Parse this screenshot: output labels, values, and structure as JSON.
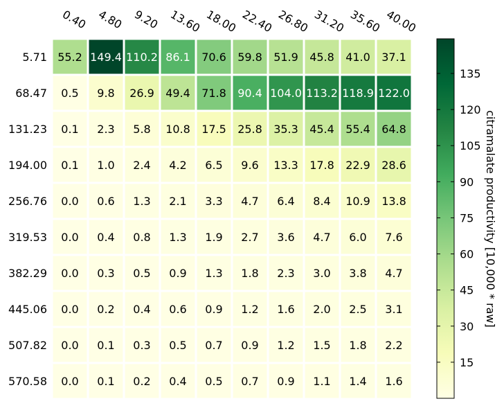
{
  "chart_data": {
    "type": "heatmap",
    "x_ticks": [
      "0.40",
      "4.80",
      "9.20",
      "13.60",
      "18.00",
      "22.40",
      "26.80",
      "31.20",
      "35.60",
      "40.00"
    ],
    "y_ticks": [
      "5.71",
      "68.47",
      "131.23",
      "194.00",
      "256.76",
      "319.53",
      "382.29",
      "445.06",
      "507.82",
      "570.58"
    ],
    "values": [
      [
        55.2,
        149.4,
        110.2,
        86.1,
        70.6,
        59.8,
        51.9,
        45.8,
        41.0,
        37.1
      ],
      [
        0.5,
        9.8,
        26.9,
        49.4,
        71.8,
        90.4,
        104.0,
        113.2,
        118.9,
        122.0
      ],
      [
        0.1,
        2.3,
        5.8,
        10.8,
        17.5,
        25.8,
        35.3,
        45.4,
        55.4,
        64.8
      ],
      [
        0.1,
        1.0,
        2.4,
        4.2,
        6.5,
        9.6,
        13.3,
        17.8,
        22.9,
        28.6
      ],
      [
        0.0,
        0.6,
        1.3,
        2.1,
        3.3,
        4.7,
        6.4,
        8.4,
        10.9,
        13.8
      ],
      [
        0.0,
        0.4,
        0.8,
        1.3,
        1.9,
        2.7,
        3.6,
        4.7,
        6.0,
        7.6
      ],
      [
        0.0,
        0.3,
        0.5,
        0.9,
        1.3,
        1.8,
        2.3,
        3.0,
        3.8,
        4.7
      ],
      [
        0.0,
        0.2,
        0.4,
        0.6,
        0.9,
        1.2,
        1.6,
        2.0,
        2.5,
        3.1
      ],
      [
        0.0,
        0.1,
        0.3,
        0.5,
        0.7,
        0.9,
        1.2,
        1.5,
        1.8,
        2.2
      ],
      [
        0.0,
        0.1,
        0.2,
        0.4,
        0.5,
        0.7,
        0.9,
        1.1,
        1.4,
        1.6
      ]
    ],
    "colorbar": {
      "label": "citramalate productivity [10,000 * raw]",
      "ticks": [
        "15",
        "30",
        "45",
        "60",
        "75",
        "90",
        "105",
        "120",
        "135"
      ],
      "range": [
        0,
        149.4
      ],
      "colormap": "YlGn"
    },
    "title": "",
    "xlabel": "",
    "ylabel": ""
  }
}
